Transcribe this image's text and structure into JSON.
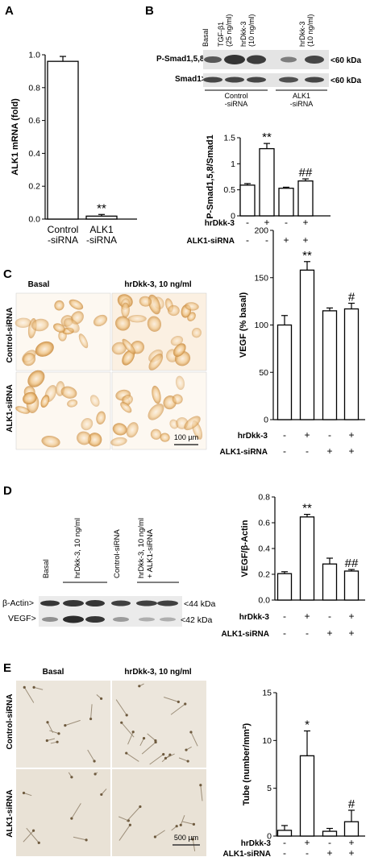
{
  "panels": {
    "A": "A",
    "B": "B",
    "C": "C",
    "D": "D",
    "E": "E"
  },
  "chart_data": [
    {
      "id": "A",
      "type": "bar",
      "ylabel": "ALK1 mRNA (fold)",
      "ylim": [
        0,
        1.0
      ],
      "yticks": [
        "0.0",
        "0.2",
        "0.4",
        "0.6",
        "0.8",
        "1.0"
      ],
      "categories": [
        "Control\n-siRNA",
        "ALK1\n-siRNA"
      ],
      "values": [
        0.96,
        0.018
      ],
      "errors": [
        0.03,
        0.01
      ],
      "annotations": [
        "",
        "**"
      ]
    },
    {
      "id": "B",
      "type": "bar",
      "ylabel": "P-Smad1,5,8/Smad1",
      "ylim": [
        0,
        1.5
      ],
      "yticks": [
        "0",
        "0.5",
        "1",
        "1.5"
      ],
      "values": [
        0.59,
        1.29,
        0.53,
        0.67
      ],
      "errors": [
        0.03,
        0.1,
        0.02,
        0.04
      ],
      "annotations": [
        "",
        "**",
        "",
        "##"
      ],
      "row1_label": "hrDkk-3",
      "row1": [
        "-",
        "+",
        "-",
        "+"
      ],
      "row2_label": "ALK1-siRNA",
      "row2": [
        "-",
        "-",
        "+",
        "+"
      ]
    },
    {
      "id": "C",
      "type": "bar",
      "ylabel": "VEGF (% basal)",
      "ylim": [
        0,
        200
      ],
      "yticks": [
        "0",
        "50",
        "100",
        "150",
        "200"
      ],
      "values": [
        100,
        158,
        115,
        117
      ],
      "errors": [
        10,
        9,
        3,
        6
      ],
      "annotations": [
        "",
        "**",
        "",
        "#"
      ],
      "row1_label": "hrDkk-3",
      "row1": [
        "-",
        "+",
        "-",
        "+"
      ],
      "row2_label": "ALK1-siRNA",
      "row2": [
        "-",
        "-",
        "+",
        "+"
      ]
    },
    {
      "id": "D",
      "type": "bar",
      "ylabel": "VEGF/β-Actin",
      "ylim": [
        0,
        0.8
      ],
      "yticks": [
        "0.0",
        "0.2",
        "0.4",
        "0.6",
        "0.8"
      ],
      "values": [
        0.205,
        0.645,
        0.28,
        0.225
      ],
      "errors": [
        0.015,
        0.02,
        0.045,
        0.012
      ],
      "annotations": [
        "",
        "**",
        "",
        "##"
      ],
      "row1_label": "hrDkk-3",
      "row1": [
        "-",
        "+",
        "-",
        "+"
      ],
      "row2_label": "ALK1-siRNA",
      "row2": [
        "-",
        "-",
        "+",
        "+"
      ]
    },
    {
      "id": "E",
      "type": "bar",
      "ylabel": "Tube (number/mm²)",
      "ylim": [
        0,
        15
      ],
      "yticks": [
        "0",
        "5",
        "10",
        "15"
      ],
      "values": [
        0.6,
        8.4,
        0.5,
        1.5
      ],
      "errors": [
        0.5,
        2.6,
        0.3,
        1.2
      ],
      "annotations": [
        "",
        "*",
        "",
        "#"
      ],
      "row1_label": "hrDkk-3",
      "row1": [
        "-",
        "+",
        "-",
        "+"
      ],
      "row2_label": "ALK1-siRNA",
      "row2": [
        "-",
        "-",
        "+",
        "+"
      ]
    }
  ],
  "blotB": {
    "lanes": [
      "Basal",
      "TGF-β1\n(25 ng/ml)",
      "hrDkk-3\n(10 ng/ml)",
      "hrDkk-3\n(10 ng/ml)"
    ],
    "row_labels": [
      "P-Smad1,5,8>",
      "Smad1>"
    ],
    "kda": [
      "<60 kDa",
      "<60 kDa"
    ],
    "group1": "Control\n-siRNA",
    "group2": "ALK1\n-siRNA"
  },
  "imagesC": {
    "col1": "Basal",
    "col2": "hrDkk-3, 10 ng/ml",
    "row1": "Control-siRNA",
    "row2": "ALK1-siRNA",
    "scale": "100 µm"
  },
  "blotD": {
    "lanes": [
      "Basal",
      "hrDkk-3, 10 ng/ml",
      "Control-siRNA",
      "hrDkk-3, 10 ng/ml\n+ ALK1-siRNA"
    ],
    "row_labels": [
      "β-Actin>",
      "VEGF>"
    ],
    "kda": [
      "<44 kDa",
      "<42 kDa"
    ]
  },
  "imagesE": {
    "col1": "Basal",
    "col2": "hrDkk-3, 10 ng/ml",
    "row1": "Control-siRNA",
    "row2": "ALK1-siRNA",
    "scale": "500 µm"
  }
}
